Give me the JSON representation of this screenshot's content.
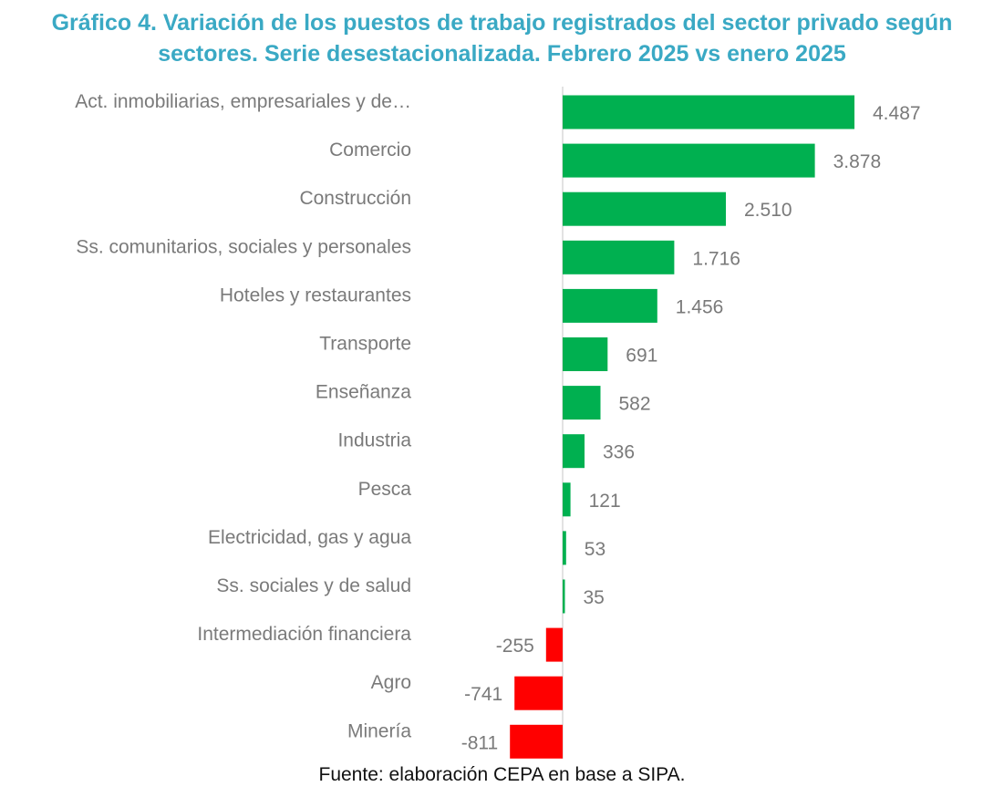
{
  "chart_data": {
    "type": "bar",
    "orientation": "horizontal",
    "title_lines": [
      "Gráfico 4. Variación de los puestos de trabajo registrados del sector privado según",
      "sectores. Serie desestacionalizada. Febrero 2025 vs enero 2025"
    ],
    "categories": [
      "Act. inmobiliarias, empresariales y de…",
      "Comercio",
      "Construcción",
      "Ss. comunitarios, sociales y personales",
      "Hoteles y restaurantes",
      "Transporte",
      "Enseñanza",
      "Industria",
      "Pesca",
      "Electricidad, gas y agua",
      "Ss. sociales y de salud",
      "Intermediación financiera",
      "Agro",
      "Minería"
    ],
    "values": [
      4487,
      3878,
      2510,
      1716,
      1456,
      691,
      582,
      336,
      121,
      53,
      35,
      -255,
      -741,
      -811
    ],
    "value_labels": [
      "4.487",
      "3.878",
      "2.510",
      "1.716",
      "1.456",
      "691",
      "582",
      "336",
      "121",
      "53",
      "35",
      "-255",
      "-741",
      "-811"
    ],
    "colors": {
      "positive": "#00b050",
      "negative": "#ff0000",
      "axis": "#d9d9d9"
    },
    "xlim": [
      -811,
      4487
    ],
    "grid": false,
    "legend": "none"
  },
  "source": "Fuente: elaboración CEPA en base a SIPA."
}
